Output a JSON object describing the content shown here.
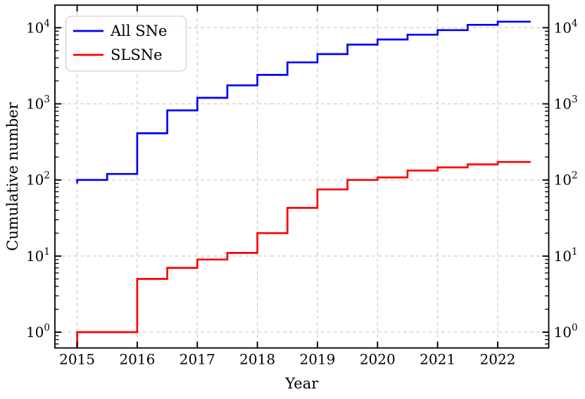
{
  "figure": {
    "background": "#ffffff",
    "frame_color": "#000000",
    "grid_color": "#c9c9c9"
  },
  "chart_data": {
    "type": "line",
    "subtype": "step-post-cumulative",
    "title": "",
    "xlabel": "Year",
    "ylabel": "Cumulative number",
    "x_scale": "linear",
    "y_scale": "log",
    "xlim": [
      2014.63,
      2022.85
    ],
    "ylim": [
      0.62,
      19800
    ],
    "x_ticks": [
      2015,
      2016,
      2017,
      2018,
      2019,
      2020,
      2021,
      2022
    ],
    "y_tick_exponents": [
      0,
      1,
      2,
      3,
      4
    ],
    "grid": true,
    "legend_position": "upper left",
    "series": [
      {
        "name": "All SNe",
        "color": "#0000ff",
        "x": [
          2015,
          2015.5,
          2016,
          2016.5,
          2017,
          2017.5,
          2018,
          2018.5,
          2019,
          2019.5,
          2020,
          2020.5,
          2021,
          2021.5,
          2022
        ],
        "values": [
          100,
          120,
          410,
          820,
          1200,
          1750,
          2400,
          3500,
          4500,
          6000,
          7000,
          8100,
          9300,
          10900,
          12000
        ],
        "start_value": 90,
        "x_end": 2022.55
      },
      {
        "name": "SLSNe",
        "color": "#ff0000",
        "x": [
          2015,
          2016,
          2016.5,
          2017,
          2017.5,
          2018,
          2018.5,
          2019,
          2019.5,
          2020,
          2020.5,
          2021,
          2021.5,
          2022
        ],
        "values": [
          1,
          5,
          7,
          9,
          11,
          20,
          43,
          75,
          100,
          108,
          133,
          146,
          160,
          172
        ],
        "start_value": 0.4,
        "x_end": 2022.55
      }
    ]
  }
}
